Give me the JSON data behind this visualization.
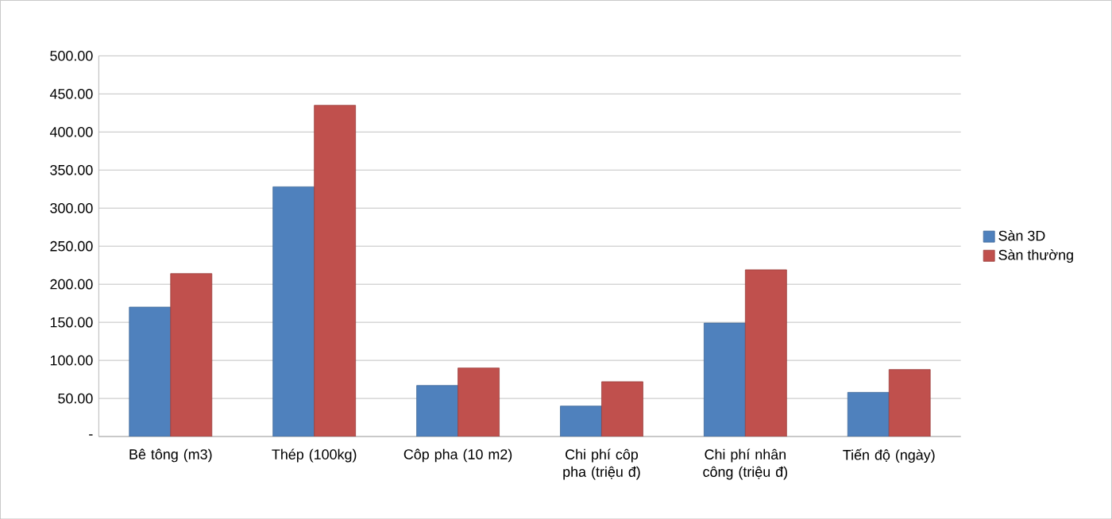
{
  "chart_data": {
    "type": "bar",
    "categories": [
      "Bê tông (m3)",
      "Thép (100kg)",
      "Côp pha (10 m2)",
      "Chi phí côp pha (triệu đ)",
      "Chi phí nhân công (triệu đ)",
      "Tiến độ (ngày)"
    ],
    "series": [
      {
        "name": "Sàn 3D",
        "color": "#4f81bd",
        "values": [
          170,
          328,
          67,
          40,
          149,
          58
        ]
      },
      {
        "name": "Sàn thường",
        "color": "#c0504d",
        "values": [
          214,
          435,
          90,
          72,
          219,
          88
        ]
      }
    ],
    "ylim": [
      0,
      500
    ],
    "yticks": [
      {
        "value": 0,
        "label": "-"
      },
      {
        "value": 50,
        "label": "50.00"
      },
      {
        "value": 100,
        "label": "100.00"
      },
      {
        "value": 150,
        "label": "150.00"
      },
      {
        "value": 200,
        "label": "200.00"
      },
      {
        "value": 250,
        "label": "250.00"
      },
      {
        "value": 300,
        "label": "300.00"
      },
      {
        "value": 350,
        "label": "350.00"
      },
      {
        "value": 400,
        "label": "400.00"
      },
      {
        "value": 450,
        "label": "450.00"
      },
      {
        "value": 500,
        "label": "500.00"
      }
    ],
    "grid": "y",
    "legend": "right"
  }
}
